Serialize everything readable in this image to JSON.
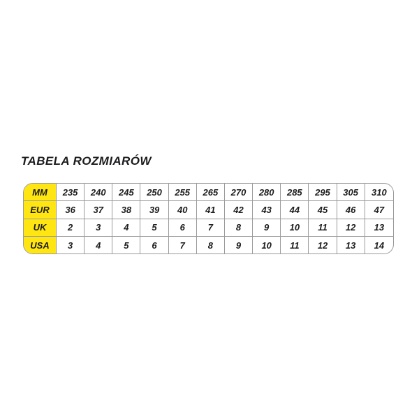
{
  "title": "TABELA ROZMIARÓW",
  "colors": {
    "header_yellow": "#ffe612",
    "grid_gray": "#9a9a9a",
    "text": "#1c1c1e",
    "background": "#ffffff"
  },
  "chart_data": {
    "type": "table",
    "title": "TABELA ROZMIARÓW",
    "row_labels": [
      "MM",
      "EUR",
      "UK",
      "USA"
    ],
    "rows": [
      {
        "label": "MM",
        "values": [
          235,
          240,
          245,
          250,
          255,
          265,
          270,
          280,
          285,
          295,
          305,
          310
        ]
      },
      {
        "label": "EUR",
        "values": [
          36,
          37,
          38,
          39,
          40,
          41,
          42,
          43,
          44,
          45,
          46,
          47
        ]
      },
      {
        "label": "UK",
        "values": [
          2,
          3,
          4,
          5,
          6,
          7,
          8,
          9,
          10,
          11,
          12,
          13
        ]
      },
      {
        "label": "USA",
        "values": [
          3,
          4,
          5,
          6,
          7,
          8,
          9,
          10,
          11,
          12,
          13,
          14
        ]
      }
    ],
    "columns_count": 12,
    "layout": "first column is a yellow row-header column; grid lines gray; outer border rounded"
  }
}
